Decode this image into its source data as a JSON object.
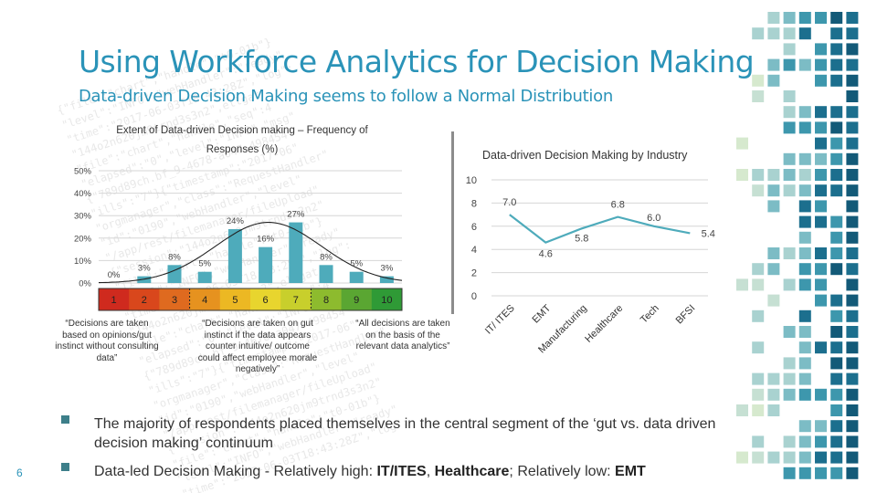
{
  "slide": {
    "title": "Using Workforce Analytics for Decision Making",
    "subtitle": "Data-driven Decision Making seems to follow a Normal Distribution",
    "page_number": "6",
    "bullets": [
      {
        "text": "The majority of respondents placed themselves in the central segment of the ‘gut vs. data driven decision making’ continuum"
      },
      {
        "prefix": "Data-led Decision Making - Relatively high: ",
        "bold1": "IT/ITES",
        "sep": ", ",
        "bold2": "Healthcare",
        "mid": "; Relatively low: ",
        "bold3": "EMT"
      }
    ],
    "accent_color": "#2a93b8",
    "bar_color": "#4eabbb",
    "line_color": "#4eabbb"
  },
  "chart_data": [
    {
      "type": "bar",
      "title": "Extent of Data-driven Decision making – Frequency of Responses (%)",
      "categories": [
        "1",
        "2",
        "3",
        "4",
        "5",
        "6",
        "7",
        "8",
        "9",
        "10"
      ],
      "values": [
        0,
        3,
        8,
        5,
        24,
        16,
        27,
        8,
        5,
        3
      ],
      "value_labels": [
        "0%",
        "3%",
        "8%",
        "5%",
        "24%",
        "16%",
        "27%",
        "8%",
        "5%",
        "3%"
      ],
      "y_ticks": [
        "0%",
        "10%",
        "20%",
        "30%",
        "40%",
        "50%"
      ],
      "ylim": [
        0,
        50
      ],
      "grid": true,
      "overlay": "normal curve",
      "scale_colors": [
        "#cf2a1e",
        "#d9471c",
        "#df6a1f",
        "#e6921f",
        "#ecb823",
        "#e8d52e",
        "#c8cf2c",
        "#8dbb2e",
        "#5aa632",
        "#2f9a36"
      ],
      "annotations": [
        "“Decisions are taken based on opinions/gut instinct without consulting data”",
        "“Decisions are taken on gut instinct if the data appears counter intuitive/ outcome could affect employee morale negatively”",
        "“All decisions are taken on the basis of the relevant data analytics”"
      ]
    },
    {
      "type": "line",
      "title": "Data-driven Decision Making by Industry",
      "categories": [
        "IT/ ITES",
        "EMT",
        "Manufacturing",
        "Healthcare",
        "Tech",
        "BFSI"
      ],
      "values": [
        7.0,
        4.6,
        5.8,
        6.8,
        6.0,
        5.4
      ],
      "value_labels": [
        "7.0",
        "4.6",
        "5.8",
        "6.8",
        "6.0",
        "5.4"
      ],
      "y_ticks": [
        "0",
        "2",
        "4",
        "6",
        "8",
        "10"
      ],
      "ylim": [
        0,
        10
      ],
      "grid": true
    }
  ]
}
